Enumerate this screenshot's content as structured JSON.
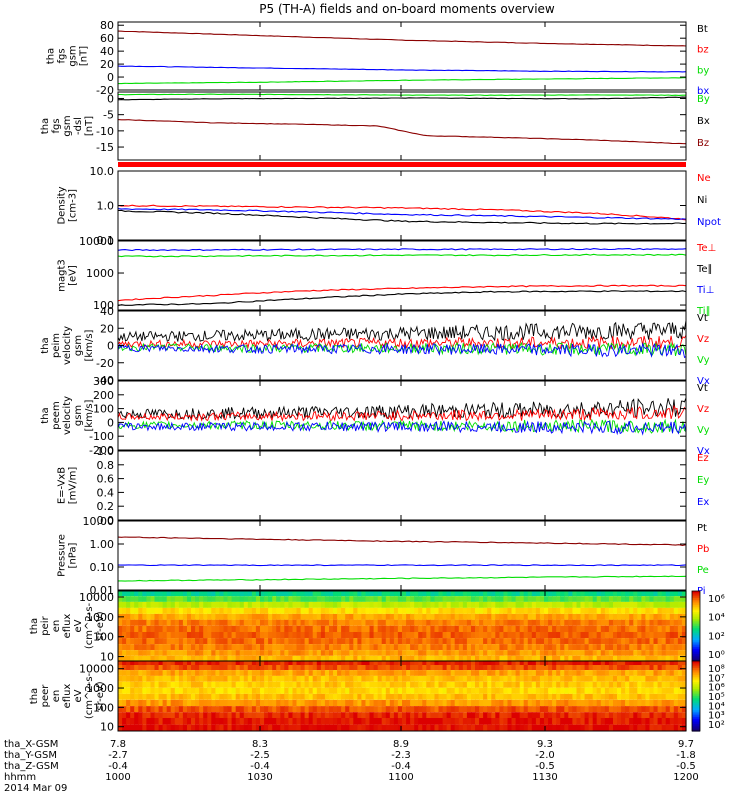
{
  "title": "P5 (TH-A) fields and on-board moments overview",
  "footer": {
    "row_labels": [
      "tha_X-GSM",
      "tha_Y-GSM",
      "tha_Z-GSM",
      "hhmm",
      "2014 Mar 09"
    ],
    "columns": [
      [
        "7.8",
        "-2.7",
        "-0.4",
        "1000"
      ],
      [
        "8.3",
        "-2.5",
        "-0.4",
        "1030"
      ],
      [
        "8.9",
        "-2.3",
        "-0.4",
        "1100"
      ],
      [
        "9.3",
        "-2.0",
        "-0.5",
        "1130"
      ],
      [
        "9.7",
        "-1.8",
        "-0.5",
        "1200"
      ]
    ]
  },
  "colors": {
    "black": "#000000",
    "red": "#ff0000",
    "green": "#00dd00",
    "blue": "#0000ff",
    "darkred": "#8b0000"
  },
  "chart_data": [
    {
      "type": "line",
      "ylabel": [
        "tha",
        "fgs",
        "gsm",
        "[nT]"
      ],
      "yticks": [
        "80",
        "60",
        "40",
        "20",
        "0",
        "-20"
      ],
      "tick_values": [
        80,
        60,
        40,
        20,
        0,
        -20
      ],
      "ylim": [
        -20,
        85
      ],
      "legend": [
        {
          "text": "Bt",
          "color": "black"
        },
        {
          "text": "bz",
          "color": "red"
        },
        {
          "text": "by",
          "color": "green"
        },
        {
          "text": "bx",
          "color": "blue"
        }
      ],
      "x": [
        0,
        30,
        60,
        90,
        120
      ],
      "series": [
        {
          "name": "Bt",
          "color": "darkred",
          "values": [
            71,
            64,
            57,
            52,
            48
          ]
        },
        {
          "name": "by",
          "color": "green",
          "values": [
            -10,
            -8,
            -5,
            -3,
            -1
          ]
        },
        {
          "name": "bx",
          "color": "blue",
          "values": [
            17,
            14,
            11,
            9,
            8
          ]
        }
      ]
    },
    {
      "type": "line",
      "ylabel": [
        "tha",
        "fgs",
        "gsm",
        "-dsl",
        "[nT]"
      ],
      "yticks": [
        "0",
        "-5",
        "-10",
        "-15"
      ],
      "tick_values": [
        0,
        -5,
        -10,
        -15
      ],
      "ylim": [
        -19,
        2
      ],
      "legend": [
        {
          "text": "By",
          "color": "green"
        },
        {
          "text": "Bx",
          "color": "black"
        },
        {
          "text": "Bz",
          "color": "darkred"
        }
      ],
      "x": [
        0,
        20,
        40,
        55,
        65,
        80,
        100,
        120
      ],
      "series": [
        {
          "name": "By",
          "color": "green",
          "values": [
            1.2,
            1.3,
            1.2,
            1.1,
            1.0,
            1.0,
            1.1,
            1.0
          ]
        },
        {
          "name": "Bx",
          "color": "black",
          "values": [
            -0.4,
            -0.1,
            0.0,
            0.1,
            0.2,
            0.0,
            -0.1,
            0.4
          ]
        },
        {
          "name": "Bz",
          "color": "darkred",
          "values": [
            -6.5,
            -7.5,
            -8.0,
            -8.5,
            -11.5,
            -12.0,
            -12.8,
            -14.0
          ]
        }
      ]
    },
    {
      "type": "line",
      "scale": "log",
      "ylabel": [
        "Density",
        "[cm-3]"
      ],
      "yticks": [
        "10.0",
        "1.0",
        "0.1"
      ],
      "tick_values": [
        10,
        1,
        0.1
      ],
      "ylim": [
        0.1,
        10
      ],
      "legend": [
        {
          "text": "Ne",
          "color": "red"
        },
        {
          "text": "Ni",
          "color": "black"
        },
        {
          "text": "Npot",
          "color": "blue"
        }
      ],
      "x": [
        0,
        20,
        40,
        60,
        80,
        100,
        120
      ],
      "series": [
        {
          "name": "Ne",
          "color": "red",
          "values": [
            1.0,
            0.95,
            0.9,
            0.85,
            0.75,
            0.6,
            0.4
          ]
        },
        {
          "name": "Ni",
          "color": "black",
          "values": [
            0.7,
            0.6,
            0.45,
            0.35,
            0.32,
            0.3,
            0.3
          ]
        },
        {
          "name": "Npot",
          "color": "blue",
          "values": [
            0.8,
            0.75,
            0.65,
            0.55,
            0.5,
            0.45,
            0.4
          ]
        }
      ]
    },
    {
      "type": "line",
      "scale": "log",
      "ylabel": [
        "magt3",
        "[eV]"
      ],
      "yticks": [
        "10000",
        "1000",
        "100"
      ],
      "tick_values": [
        10000,
        1000,
        100
      ],
      "ylim": [
        70,
        10000
      ],
      "legend": [
        {
          "text": "Te⊥",
          "color": "red"
        },
        {
          "text": "Te∥",
          "color": "black"
        },
        {
          "text": "Ti⊥",
          "color": "blue"
        },
        {
          "text": "Ti∥",
          "color": "green"
        }
      ],
      "x": [
        0,
        20,
        40,
        60,
        80,
        100,
        120
      ],
      "series": [
        {
          "name": "Ti⊥",
          "color": "blue",
          "values": [
            5200,
            5300,
            5400,
            5500,
            5500,
            5600,
            5600
          ]
        },
        {
          "name": "Ti∥",
          "color": "green",
          "values": [
            3300,
            3400,
            3500,
            3600,
            3600,
            3700,
            3700
          ]
        },
        {
          "name": "Te⊥",
          "color": "red",
          "values": [
            140,
            200,
            280,
            330,
            380,
            400,
            400
          ]
        },
        {
          "name": "Te∥",
          "color": "black",
          "values": [
            100,
            110,
            160,
            220,
            260,
            270,
            270
          ]
        }
      ]
    },
    {
      "type": "line",
      "ylabel": [
        "tha",
        "peim",
        "velocity",
        "gsm",
        "[km/s]"
      ],
      "yticks": [
        "40",
        "20",
        "0",
        "-20",
        "-40"
      ],
      "tick_values": [
        40,
        20,
        0,
        -20,
        -40
      ],
      "ylim": [
        -40,
        40
      ],
      "legend": [
        {
          "text": "Vt",
          "color": "black"
        },
        {
          "text": "Vz",
          "color": "red"
        },
        {
          "text": "Vy",
          "color": "green"
        },
        {
          "text": "Vx",
          "color": "blue"
        }
      ],
      "x": [
        0,
        30,
        60,
        90,
        120
      ],
      "series": [
        {
          "name": "Vt",
          "color": "black",
          "values": [
            10,
            12,
            14,
            16,
            18
          ]
        },
        {
          "name": "Vz",
          "color": "red",
          "values": [
            2,
            2,
            3,
            3,
            4
          ]
        },
        {
          "name": "Vy",
          "color": "green",
          "values": [
            -2,
            -3,
            -3,
            -4,
            -5
          ]
        },
        {
          "name": "Vx",
          "color": "blue",
          "values": [
            -3,
            -4,
            -4,
            -5,
            -6
          ]
        }
      ]
    },
    {
      "type": "line",
      "ylabel": [
        "tha",
        "peem",
        "velocity",
        "gsm",
        "[km/s]"
      ],
      "yticks": [
        "300",
        "200",
        "100",
        "0",
        "-100",
        "-200"
      ],
      "tick_values": [
        300,
        200,
        100,
        0,
        -100,
        -200
      ],
      "ylim": [
        -200,
        300
      ],
      "legend": [
        {
          "text": "Vt",
          "color": "black"
        },
        {
          "text": "Vz",
          "color": "red"
        },
        {
          "text": "Vy",
          "color": "green"
        },
        {
          "text": "Vx",
          "color": "blue"
        }
      ],
      "x": [
        0,
        30,
        60,
        90,
        120
      ],
      "series": [
        {
          "name": "Vt",
          "color": "black",
          "values": [
            60,
            70,
            80,
            90,
            110
          ]
        },
        {
          "name": "Vz",
          "color": "red",
          "values": [
            40,
            45,
            50,
            55,
            70
          ]
        },
        {
          "name": "Vy",
          "color": "green",
          "values": [
            -20,
            -20,
            -25,
            -25,
            -30
          ]
        },
        {
          "name": "Vx",
          "color": "blue",
          "values": [
            -30,
            -30,
            -30,
            -35,
            -40
          ]
        }
      ]
    },
    {
      "type": "line",
      "ylabel": [
        "E=-VxB",
        "[mV/m]"
      ],
      "yticks": [
        "1.0",
        "0.8",
        "0.6",
        "0.4",
        "0.2",
        "0.0"
      ],
      "tick_values": [
        1.0,
        0.8,
        0.6,
        0.4,
        0.2,
        0.0
      ],
      "ylim": [
        0,
        1
      ],
      "legend": [
        {
          "text": "Ez",
          "color": "red"
        },
        {
          "text": "Ey",
          "color": "green"
        },
        {
          "text": "Ex",
          "color": "blue"
        }
      ],
      "x": [],
      "series": []
    },
    {
      "type": "line",
      "scale": "log",
      "ylabel": [
        "Pressure",
        "[nPa]"
      ],
      "yticks": [
        "10.00",
        "1.00",
        "0.10",
        "0.01"
      ],
      "tick_values": [
        10,
        1,
        0.1,
        0.01
      ],
      "ylim": [
        0.01,
        10
      ],
      "legend": [
        {
          "text": "Pt",
          "color": "black"
        },
        {
          "text": "Pb",
          "color": "red"
        },
        {
          "text": "Pe",
          "color": "green"
        },
        {
          "text": "Pi",
          "color": "blue"
        }
      ],
      "x": [
        0,
        30,
        60,
        90,
        120
      ],
      "series": [
        {
          "name": "Pb",
          "color": "darkred",
          "values": [
            2.0,
            1.6,
            1.3,
            1.1,
            0.9
          ]
        },
        {
          "name": "Pi",
          "color": "blue",
          "values": [
            0.12,
            0.12,
            0.12,
            0.12,
            0.12
          ]
        },
        {
          "name": "Pe",
          "color": "green",
          "values": [
            0.025,
            0.028,
            0.032,
            0.036,
            0.04
          ]
        }
      ]
    },
    {
      "type": "heatmap",
      "scale": "log",
      "ylabel": [
        "tha",
        "peir",
        "en",
        "eflux",
        "eV",
        "(cm^2-s-",
        "sr-eV)"
      ],
      "yticks": [
        "10000",
        "1000",
        "100",
        "10"
      ],
      "tick_values": [
        10000,
        1000,
        100,
        10
      ],
      "ylim": [
        6,
        20000
      ],
      "colorbar": {
        "ticks": [
          "10⁶",
          "10⁴",
          "10²",
          "10⁰"
        ],
        "range": [
          1,
          1000000
        ]
      },
      "rows": [
        {
          "e": 15000,
          "v": 400
        },
        {
          "e": 8000,
          "v": 1500
        },
        {
          "e": 4000,
          "v": 6000
        },
        {
          "e": 2000,
          "v": 30000
        },
        {
          "e": 1000,
          "v": 80000
        },
        {
          "e": 500,
          "v": 150000
        },
        {
          "e": 250,
          "v": 200000
        },
        {
          "e": 120,
          "v": 250000
        },
        {
          "e": 60,
          "v": 200000
        },
        {
          "e": 30,
          "v": 150000
        },
        {
          "e": 15,
          "v": 100000
        },
        {
          "e": 8,
          "v": 60000
        }
      ]
    },
    {
      "type": "heatmap",
      "scale": "log",
      "ylabel": [
        "tha",
        "peer",
        "en",
        "eflux",
        "eV",
        "(cm^2-s-",
        "sr-eV)"
      ],
      "yticks": [
        "10000",
        "1000",
        "100",
        "10"
      ],
      "tick_values": [
        10000,
        1000,
        100,
        10
      ],
      "ylim": [
        6,
        25000
      ],
      "colorbar": {
        "ticks": [
          "10⁸",
          "10⁷",
          "10⁶",
          "10⁵",
          "10⁴",
          "10³",
          "10²"
        ],
        "range": [
          100,
          100000000
        ]
      },
      "rows": [
        {
          "e": 20000,
          "v": 60000000
        },
        {
          "e": 12000,
          "v": 30000000
        },
        {
          "e": 6000,
          "v": 8000000
        },
        {
          "e": 3000,
          "v": 5000000
        },
        {
          "e": 1500,
          "v": 4000000
        },
        {
          "e": 700,
          "v": 3000000
        },
        {
          "e": 350,
          "v": 5000000
        },
        {
          "e": 170,
          "v": 10000000
        },
        {
          "e": 80,
          "v": 30000000
        },
        {
          "e": 40,
          "v": 60000000
        },
        {
          "e": 20,
          "v": 80000000
        },
        {
          "e": 8,
          "v": 90000000
        }
      ]
    }
  ]
}
